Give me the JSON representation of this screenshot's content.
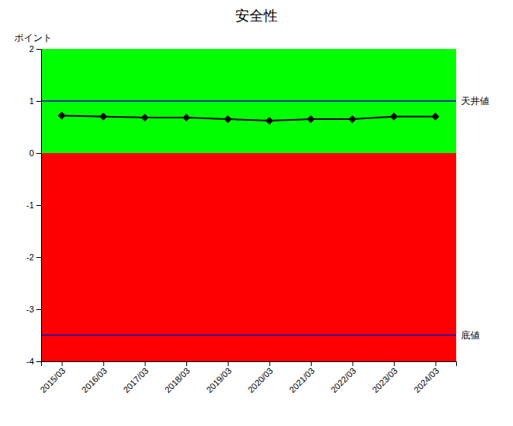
{
  "chart_data": {
    "type": "line",
    "title": "安全性",
    "ylabel": "ポイント",
    "categories": [
      "2015/03",
      "2016/03",
      "2017/03",
      "2018/03",
      "2019/03",
      "2020/03",
      "2021/03",
      "2022/03",
      "2023/03",
      "2024/03"
    ],
    "values": [
      0.72,
      0.7,
      0.68,
      0.68,
      0.65,
      0.62,
      0.65,
      0.65,
      0.7,
      0.7
    ],
    "color": "#000000",
    "marker": "diamond",
    "ylim": [
      -4,
      2
    ],
    "yticks": [
      -4,
      -3,
      -2,
      -1,
      0,
      1,
      2
    ],
    "grid": false,
    "regions": [
      {
        "y0": 0,
        "y1": 2,
        "color": "#00ff00"
      },
      {
        "y0": -4,
        "y1": 0,
        "color": "#ff0000"
      }
    ],
    "annotations": [
      {
        "y": 1.0,
        "text": "天井値",
        "color": "#0000cd"
      },
      {
        "y": -3.5,
        "text": "底値",
        "color": "#0000cd"
      }
    ]
  }
}
